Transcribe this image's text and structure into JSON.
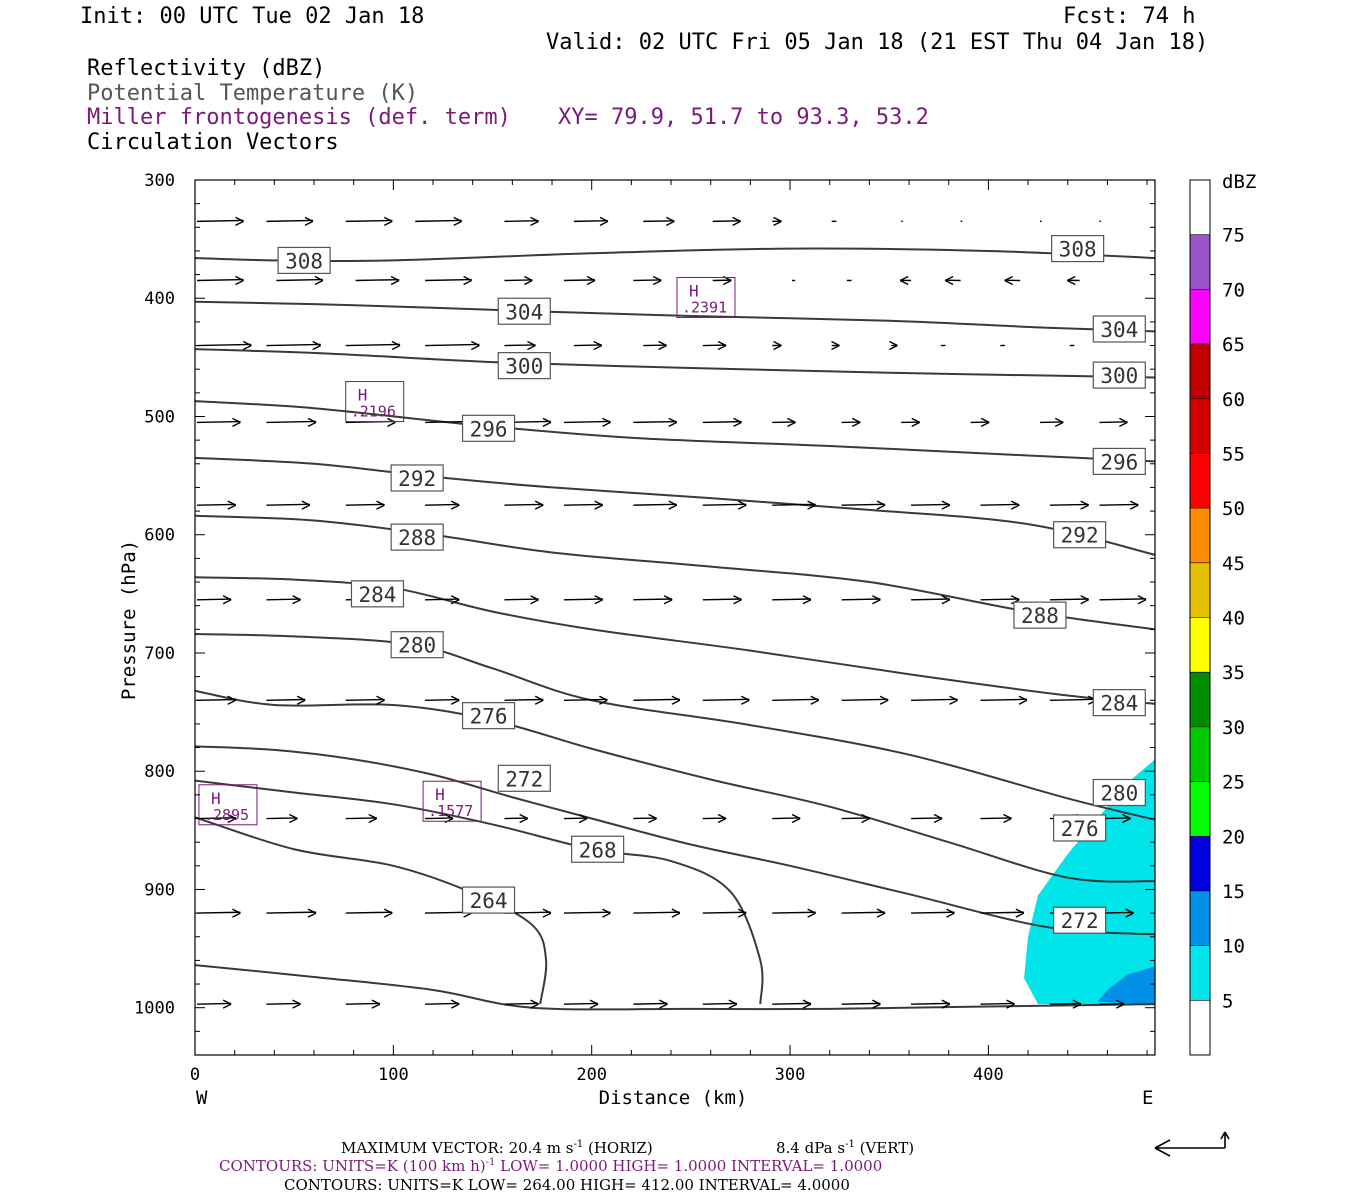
{
  "header": {
    "init": "Init: 00 UTC Tue 02 Jan 18",
    "fcst": "Fcst:   74 h",
    "valid": "Valid: 02 UTC Fri 05 Jan 18 (21 EST Thu 04 Jan 18)",
    "field1": "Reflectivity (dBZ)",
    "field2": "Potential Temperature (K)",
    "field3": "Miller frontogenesis (def. term)",
    "xy": "XY=  79.9, 51.7 to  93.3, 53.2",
    "field4": "Circulation Vectors"
  },
  "footer": {
    "max_vector_prefix": "MAXIMUM VECTOR:  20.4 m s",
    "max_vector_exp": "-1",
    "max_vector_horiz": " (HORIZ)",
    "max_vector_vert_prefix": "8.4 dPa s",
    "max_vector_vert_exp": "-1",
    "max_vector_vert_suffix": " (VERT)",
    "contours1_prefix": "CONTOURS:  UNITS=K (100 km h)",
    "contours1_exp": "-1",
    "contours1_suffix": "  LOW=  1.0000      HIGH=  1.0000      INTERVAL=   1.0000",
    "contours2": "CONTOURS:  UNITS=K  LOW=  264.00       HIGH=  412.00       INTERVAL=    4.0000"
  },
  "colors": {
    "theta": "#3a3a3a",
    "frontogenesis": "#7a1a7a",
    "refl_5": "#00e5ea",
    "refl_10": "#0090e8"
  },
  "chart_data": {
    "type": "cross-section",
    "xlabel": "Distance (km)",
    "ylabel": "Pressure (hPa)",
    "xlim": [
      0,
      484
    ],
    "ylim": [
      1040,
      300
    ],
    "x_ticks": [
      0,
      100,
      200,
      300,
      400
    ],
    "y_ticks": [
      300,
      400,
      500,
      600,
      700,
      800,
      900,
      1000
    ],
    "x_left_label": "W",
    "x_right_label": "E",
    "colorbar": {
      "unit": "dBZ",
      "levels": [
        5,
        10,
        15,
        20,
        25,
        30,
        35,
        40,
        45,
        50,
        55,
        60,
        65,
        70,
        75
      ],
      "colors": [
        "#ffffff",
        "#00e5ea",
        "#0090e8",
        "#0000e0",
        "#00ff00",
        "#00c800",
        "#008c00",
        "#ffff00",
        "#e6c000",
        "#ff8c00",
        "#ff0000",
        "#d40000",
        "#c00000",
        "#ff00ff",
        "#9955c8",
        "#ffffff"
      ]
    },
    "theta_contours": [
      {
        "value": 308,
        "points": [
          [
            0,
            366
          ],
          [
            40,
            368
          ],
          [
            100,
            368
          ],
          [
            200,
            362
          ],
          [
            300,
            358
          ],
          [
            400,
            360
          ],
          [
            484,
            366
          ]
        ]
      },
      {
        "value": 304,
        "points": [
          [
            0,
            403
          ],
          [
            60,
            405
          ],
          [
            120,
            408
          ],
          [
            170,
            411
          ],
          [
            250,
            415
          ],
          [
            350,
            419
          ],
          [
            430,
            425
          ],
          [
            484,
            428
          ]
        ]
      },
      {
        "value": 300,
        "points": [
          [
            0,
            443
          ],
          [
            70,
            447
          ],
          [
            150,
            454
          ],
          [
            250,
            459
          ],
          [
            350,
            463
          ],
          [
            450,
            466
          ],
          [
            484,
            467
          ]
        ]
      },
      {
        "value": 296,
        "points": [
          [
            0,
            487
          ],
          [
            60,
            493
          ],
          [
            140,
            507
          ],
          [
            220,
            518
          ],
          [
            320,
            525
          ],
          [
            420,
            533
          ],
          [
            484,
            538
          ]
        ]
      },
      {
        "value": 292,
        "points": [
          [
            0,
            535
          ],
          [
            60,
            540
          ],
          [
            120,
            551
          ],
          [
            180,
            560
          ],
          [
            260,
            569
          ],
          [
            340,
            579
          ],
          [
            420,
            591
          ],
          [
            484,
            617
          ]
        ]
      },
      {
        "value": 288,
        "points": [
          [
            0,
            584
          ],
          [
            60,
            588
          ],
          [
            120,
            600
          ],
          [
            180,
            615
          ],
          [
            260,
            627
          ],
          [
            340,
            640
          ],
          [
            420,
            665
          ],
          [
            484,
            680
          ]
        ]
      },
      {
        "value": 284,
        "points": [
          [
            0,
            636
          ],
          [
            50,
            638
          ],
          [
            100,
            645
          ],
          [
            150,
            665
          ],
          [
            200,
            680
          ],
          [
            280,
            698
          ],
          [
            360,
            718
          ],
          [
            440,
            736
          ],
          [
            484,
            743
          ]
        ]
      },
      {
        "value": 280,
        "points": [
          [
            0,
            684
          ],
          [
            50,
            686
          ],
          [
            110,
            693
          ],
          [
            150,
            713
          ],
          [
            200,
            740
          ],
          [
            280,
            761
          ],
          [
            360,
            786
          ],
          [
            440,
            823
          ],
          [
            484,
            841
          ]
        ]
      },
      {
        "value": 276,
        "points": [
          [
            0,
            732
          ],
          [
            40,
            744
          ],
          [
            100,
            744
          ],
          [
            150,
            757
          ],
          [
            200,
            781
          ],
          [
            260,
            807
          ],
          [
            320,
            830
          ],
          [
            380,
            860
          ],
          [
            440,
            890
          ],
          [
            484,
            893
          ]
        ]
      },
      {
        "value": 272,
        "points": [
          [
            0,
            779
          ],
          [
            40,
            782
          ],
          [
            80,
            790
          ],
          [
            120,
            803
          ],
          [
            160,
            822
          ],
          [
            200,
            840
          ],
          [
            250,
            862
          ],
          [
            300,
            880
          ],
          [
            360,
            904
          ],
          [
            430,
            932
          ],
          [
            484,
            938
          ]
        ]
      },
      {
        "value": 268,
        "points": [
          [
            0,
            808
          ],
          [
            50,
            818
          ],
          [
            100,
            828
          ],
          [
            150,
            845
          ],
          [
            200,
            866
          ],
          [
            240,
            876
          ],
          [
            270,
            902
          ],
          [
            285,
            960
          ],
          [
            285,
            997
          ]
        ]
      },
      {
        "value": 264,
        "points": [
          [
            0,
            839
          ],
          [
            50,
            866
          ],
          [
            100,
            880
          ],
          [
            140,
            903
          ],
          [
            170,
            930
          ],
          [
            177,
            960
          ],
          [
            174,
            997
          ]
        ]
      },
      {
        "value": null,
        "points": [
          [
            0,
            964
          ],
          [
            60,
            974
          ],
          [
            120,
            985
          ],
          [
            170,
            1000
          ],
          [
            250,
            1001
          ],
          [
            320,
            1001
          ],
          [
            400,
            999
          ],
          [
            484,
            997
          ]
        ]
      }
    ],
    "frontogenesis_maxima": [
      {
        "label": "H",
        "value": ".2895",
        "x": 3,
        "p": 825
      },
      {
        "label": "H",
        "value": ".1577",
        "x": 116,
        "p": 822
      },
      {
        "label": "H",
        "value": ".2196",
        "x": 77,
        "p": 484
      },
      {
        "label": "H",
        "value": ".2391",
        "x": 244,
        "p": 396
      }
    ],
    "reflectivity_shading": [
      {
        "dbz": 5,
        "polygon": [
          [
            484,
            790
          ],
          [
            470,
            810
          ],
          [
            455,
            840
          ],
          [
            440,
            870
          ],
          [
            425,
            905
          ],
          [
            420,
            940
          ],
          [
            418,
            975
          ],
          [
            425,
            997
          ],
          [
            484,
            997
          ]
        ]
      },
      {
        "dbz": 10,
        "polygon": [
          [
            484,
            965
          ],
          [
            470,
            972
          ],
          [
            460,
            985
          ],
          [
            455,
            995
          ],
          [
            484,
            997
          ]
        ]
      }
    ],
    "circulation_vectors": [
      {
        "p": 335,
        "x": [
          0,
          35,
          75,
          110,
          155,
          190,
          225,
          260,
          290,
          320,
          355,
          385,
          425,
          455
        ],
        "u": [
          30,
          30,
          30,
          30,
          22,
          22,
          20,
          18,
          6,
          3,
          1,
          1,
          1,
          1
        ]
      },
      {
        "p": 385,
        "x": [
          0,
          40,
          80,
          115,
          155,
          185,
          220,
          260,
          300,
          330,
          360,
          385,
          415,
          445
        ],
        "u": [
          30,
          30,
          28,
          30,
          18,
          20,
          18,
          12,
          2,
          -3,
          -7,
          -10,
          -10,
          -8
        ]
      },
      {
        "p": 440,
        "x": [
          0,
          35,
          75,
          115,
          155,
          190,
          225,
          255,
          290,
          320,
          350,
          375,
          405,
          440
        ],
        "u": [
          35,
          35,
          35,
          35,
          20,
          18,
          15,
          15,
          6,
          5,
          4,
          3,
          3,
          3
        ]
      },
      {
        "p": 505,
        "x": [
          0,
          35,
          75,
          115,
          155,
          185,
          220,
          255,
          290,
          325,
          355,
          390,
          425,
          455
        ],
        "u": [
          28,
          32,
          32,
          30,
          30,
          30,
          28,
          25,
          15,
          12,
          12,
          12,
          15,
          18
        ]
      },
      {
        "p": 575,
        "x": [
          0,
          35,
          75,
          115,
          155,
          185,
          220,
          255,
          290,
          325,
          360,
          395,
          430,
          455
        ],
        "u": [
          25,
          28,
          25,
          22,
          25,
          25,
          28,
          28,
          28,
          28,
          25,
          25,
          25,
          25
        ]
      },
      {
        "p": 655,
        "x": [
          0,
          35,
          75,
          115,
          155,
          185,
          220,
          255,
          290,
          325,
          360,
          395,
          430,
          455
        ],
        "u": [
          22,
          22,
          22,
          22,
          22,
          25,
          25,
          25,
          25,
          25,
          25,
          25,
          25,
          30
        ]
      },
      {
        "p": 740,
        "x": [
          0,
          35,
          75,
          115,
          155,
          185,
          220,
          255,
          290,
          325,
          360,
          395,
          430,
          455
        ],
        "u": [
          25,
          25,
          25,
          22,
          25,
          28,
          30,
          30,
          30,
          30,
          30,
          30,
          30,
          30
        ]
      },
      {
        "p": 840,
        "x": [
          0,
          35,
          75,
          115,
          155,
          185,
          220,
          255,
          290,
          325,
          360,
          395,
          430,
          455
        ],
        "u": [
          25,
          20,
          20,
          18,
          15,
          15,
          15,
          15,
          18,
          18,
          20,
          20,
          22,
          20
        ]
      },
      {
        "p": 920,
        "x": [
          0,
          35,
          75,
          115,
          155,
          185,
          220,
          255,
          290,
          325,
          360,
          395,
          430,
          455
        ],
        "u": [
          28,
          32,
          30,
          30,
          30,
          30,
          30,
          28,
          28,
          28,
          28,
          28,
          28,
          22
        ]
      },
      {
        "p": 997,
        "x": [
          0,
          35,
          75,
          115,
          155,
          185,
          220,
          255,
          290,
          325,
          360,
          395,
          430,
          455
        ],
        "u": [
          22,
          22,
          22,
          22,
          22,
          22,
          22,
          22,
          25,
          25,
          25,
          22,
          20,
          16
        ]
      }
    ]
  }
}
